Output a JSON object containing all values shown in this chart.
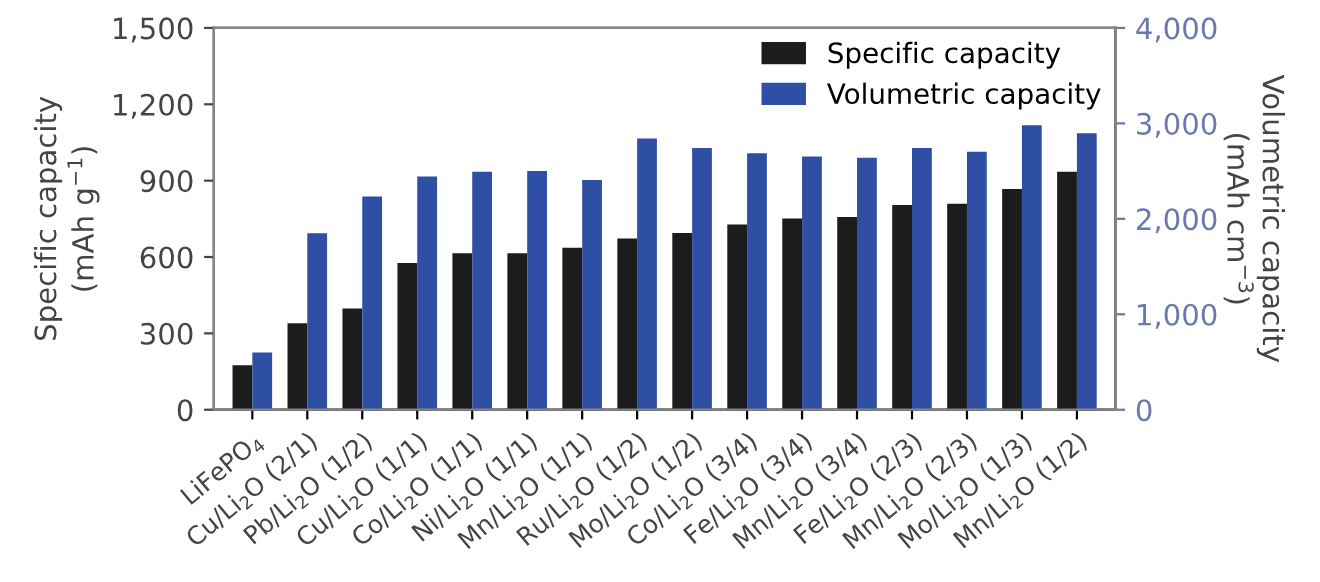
{
  "chart_data": {
    "type": "bar",
    "categories": [
      "LiFePO$_{4}$",
      "Cu/Li$_{2}$O (2/1)",
      "Pb/Li$_{2}$O (1/2)",
      "Cu/Li$_{2}$O (1/1)",
      "Co/Li$_{2}$O (1/1)",
      "Ni/Li$_{2}$O (1/1)",
      "Mn/Li$_{2}$O (1/1)",
      "Ru/Li$_{2}$O (1/2)",
      "Mo/Li$_{2}$O (1/2)",
      "Co/Li$_{2}$O (3/4)",
      "Fe/Li$_{2}$O (3/4)",
      "Mn/Li$_{2}$O (3/4)",
      "Fe/Li$_{2}$O (2/3)",
      "Mn/Li$_{2}$O (2/3)",
      "Mo/Li$_{2}$O (1/3)",
      "Mn/Li$_{2}$O (1/2)"
    ],
    "series": [
      {
        "name": "Specific capacity",
        "color": "#1c1c1e",
        "values": [
          175,
          340,
          398,
          576,
          615,
          615,
          636,
          673,
          694,
          728,
          751,
          757,
          804,
          809,
          867,
          935
        ]
      },
      {
        "name": "Volumetric capacity",
        "color": "#2e4fa3",
        "axis": "y2",
        "values": [
          600,
          1850,
          2235,
          2443,
          2492,
          2500,
          2408,
          2842,
          2743,
          2687,
          2652,
          2639,
          2743,
          2702,
          2980,
          2897
        ]
      }
    ],
    "ylabel": "Specific capacity\n(mAh g$^{−1}$)",
    "y2label": "Volumetric capacity\n(mAh cm$^{−3}$)",
    "ylim": [
      0,
      1500
    ],
    "yticks": [
      0,
      {
        "value": 300,
        "label": "300"
      },
      {
        "value": 600,
        "label": "600"
      },
      {
        "value": 900,
        "label": "900"
      },
      {
        "value": 1200,
        "label": "1,200"
      },
      {
        "value": 1500,
        "label": "1,500"
      }
    ],
    "y2lim": [
      0,
      4000
    ],
    "y2ticks": [
      0,
      {
        "value": 1000,
        "label": "1,000"
      },
      {
        "value": 2000,
        "label": "2,000"
      },
      {
        "value": 3000,
        "label": "3,000"
      },
      {
        "value": 4000,
        "label": "4,000"
      }
    ],
    "legend": "top right",
    "grid": false
  }
}
